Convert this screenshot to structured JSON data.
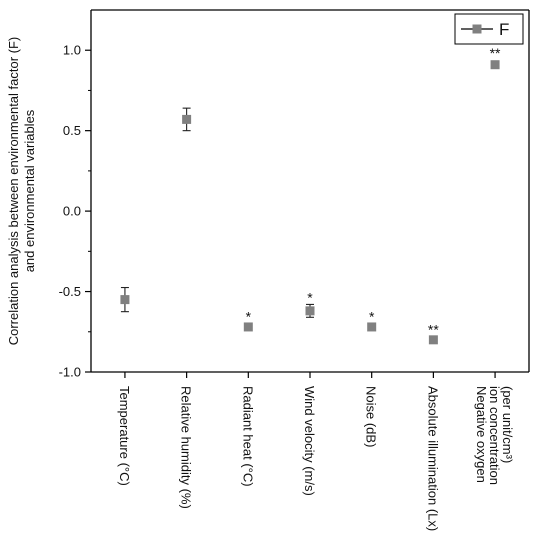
{
  "chart_data": {
    "type": "scatter",
    "title": "",
    "ylabel": [
      "Correlation analysis between environmental factor (F)",
      "and environmental variables"
    ],
    "xlabel": "",
    "ylim": [
      -1.0,
      1.25
    ],
    "yticks": [
      1.0,
      0.5,
      0.0,
      -0.5,
      -1.0
    ],
    "ytick_labels": [
      "1.0",
      "0.5",
      "0.0",
      "-0.5",
      "-1.0"
    ],
    "legend": {
      "label": "F",
      "position": "top-right"
    },
    "grid": false,
    "series": [
      {
        "name": "F",
        "color": "#808080",
        "marker": "square",
        "points": [
          {
            "category": [
              "Temperature (°C)"
            ],
            "y": -0.55,
            "err": 0.075,
            "sig": ""
          },
          {
            "category": [
              "Relative humidity (%)"
            ],
            "y": 0.57,
            "err": 0.07,
            "sig": ""
          },
          {
            "category": [
              "Radiant heat (°C)"
            ],
            "y": -0.72,
            "err": 0.02,
            "sig": "*"
          },
          {
            "category": [
              "Wind velocity (m/s)"
            ],
            "y": -0.62,
            "err": 0.04,
            "sig": "*"
          },
          {
            "category": [
              "Noise (dB)"
            ],
            "y": -0.72,
            "err": 0.02,
            "sig": "*"
          },
          {
            "category": [
              "Absolute illumination (Lx)"
            ],
            "y": -0.8,
            "err": 0.02,
            "sig": "**"
          },
          {
            "category": [
              "Negative oxygen",
              "ion concentration",
              "(per unit/cm³)"
            ],
            "y": 0.91,
            "err": 0.0,
            "sig": "**"
          }
        ]
      }
    ]
  }
}
